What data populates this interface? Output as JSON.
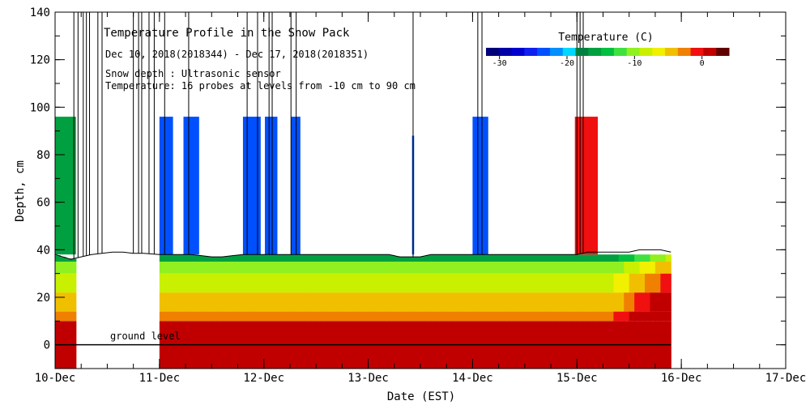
{
  "chart_data": {
    "type": "heatmap",
    "title": "Temperature Profile in the Snow Pack",
    "annotations": [
      "Dec 10, 2018(2018344) - Dec 17, 2018(2018351)",
      "Snow depth : Ultrasonic sensor",
      "Temperature: 16 probes at levels from -10 cm to 90 cm"
    ],
    "ground_label": "ground level",
    "xlabel": "Date (EST)",
    "ylabel": "Depth, cm",
    "x_ticks": [
      "10-Dec",
      "11-Dec",
      "12-Dec",
      "13-Dec",
      "14-Dec",
      "15-Dec",
      "16-Dec",
      "17-Dec"
    ],
    "x_range_days": [
      10,
      17
    ],
    "ylim": [
      -10,
      140
    ],
    "y_ticks": [
      0,
      20,
      40,
      60,
      80,
      100,
      120,
      140
    ],
    "grid": false,
    "colorbar": {
      "title": "Temperature (C)",
      "tick_labels": [
        "-30",
        "-20",
        "-10",
        "0"
      ],
      "placement": "top-right",
      "range": [
        -32,
        4
      ],
      "colors": [
        "#00007a",
        "#0000a8",
        "#0000d0",
        "#1020ee",
        "#0050ff",
        "#0090ff",
        "#00d8ff",
        "#008040",
        "#00a040",
        "#00c040",
        "#40e040",
        "#90f020",
        "#c8f000",
        "#f0f000",
        "#f0c000",
        "#f08000",
        "#f01010",
        "#c00000",
        "#600000"
      ]
    },
    "snow_depth_cm": {
      "x": [
        10.0,
        10.15,
        10.25,
        10.35,
        10.45,
        10.55,
        10.65,
        10.75,
        10.85,
        11.0,
        11.1,
        11.2,
        11.3,
        11.4,
        11.5,
        11.6,
        11.7,
        11.8,
        11.9,
        12.0,
        12.1,
        12.2,
        12.3,
        12.4,
        12.5,
        12.6,
        12.7,
        12.8,
        12.9,
        13.0,
        13.1,
        13.2,
        13.3,
        13.4,
        13.5,
        13.6,
        13.7,
        13.8,
        13.9,
        14.0,
        14.1,
        14.2,
        14.3,
        14.4,
        14.5,
        14.6,
        14.7,
        14.8,
        14.9,
        15.0,
        15.1,
        15.2,
        15.3,
        15.4,
        15.5,
        15.6,
        15.7,
        15.8,
        15.9
      ],
      "y": [
        38,
        36,
        37,
        38,
        38.5,
        39,
        39,
        38.5,
        38.5,
        38,
        38,
        38,
        38,
        37.5,
        37,
        37,
        37.5,
        38,
        38,
        38,
        38,
        38,
        38,
        38,
        38,
        38,
        38,
        38,
        38,
        38,
        38,
        38,
        37,
        37,
        37,
        38,
        38,
        38,
        38,
        38,
        38,
        38,
        38,
        38,
        38,
        38,
        38,
        38,
        38,
        38,
        39,
        39,
        39,
        39,
        39,
        40,
        40,
        40,
        39
      ]
    },
    "sensor_spikes": {
      "x": [
        10.18,
        10.22,
        10.27,
        10.3,
        10.33,
        10.41,
        10.45,
        10.75,
        10.8,
        10.83,
        10.9,
        10.95,
        11.05,
        11.28,
        11.84,
        11.94,
        12.05,
        12.08,
        12.26,
        12.31,
        13.43,
        14.05,
        14.09,
        15.0,
        15.03,
        15.06
      ]
    },
    "probe_columns": [
      {
        "x": [
          10.0,
          10.2
        ],
        "depth_to": 96,
        "temperature_c": -16
      },
      {
        "x": [
          11.0,
          11.13
        ],
        "depth_to": 96,
        "temperature_c": -24
      },
      {
        "x": [
          11.23,
          11.38
        ],
        "depth_to": 96,
        "temperature_c": -24
      },
      {
        "x": [
          11.8,
          11.97
        ],
        "depth_to": 96,
        "temperature_c": -24
      },
      {
        "x": [
          12.01,
          12.13
        ],
        "depth_to": 96,
        "temperature_c": -24
      },
      {
        "x": [
          12.26,
          12.35
        ],
        "depth_to": 96,
        "temperature_c": -24
      },
      {
        "x": [
          13.42,
          13.44
        ],
        "depth_to": 88,
        "temperature_c": -24
      },
      {
        "x": [
          14.0,
          14.15
        ],
        "depth_to": 96,
        "temperature_c": -24
      },
      {
        "x": [
          14.98,
          15.2
        ],
        "depth_to": 96,
        "temperature_c": 0
      }
    ],
    "contour_bands": [
      {
        "temperature_c": 1,
        "depth_from": -10,
        "depth_to": 10
      },
      {
        "temperature_c": -2,
        "depth_from": 10,
        "depth_to": 14
      },
      {
        "temperature_c": -5,
        "depth_from": 14,
        "depth_to": 22
      },
      {
        "temperature_c": -8,
        "depth_from": 22,
        "depth_to": 30
      },
      {
        "temperature_c": -11,
        "depth_from": 30,
        "depth_to": 35
      },
      {
        "temperature_c": -16,
        "depth_from": 35,
        "depth_to": 38
      }
    ],
    "data_gaps": [
      [
        10.2,
        11.0
      ]
    ]
  }
}
